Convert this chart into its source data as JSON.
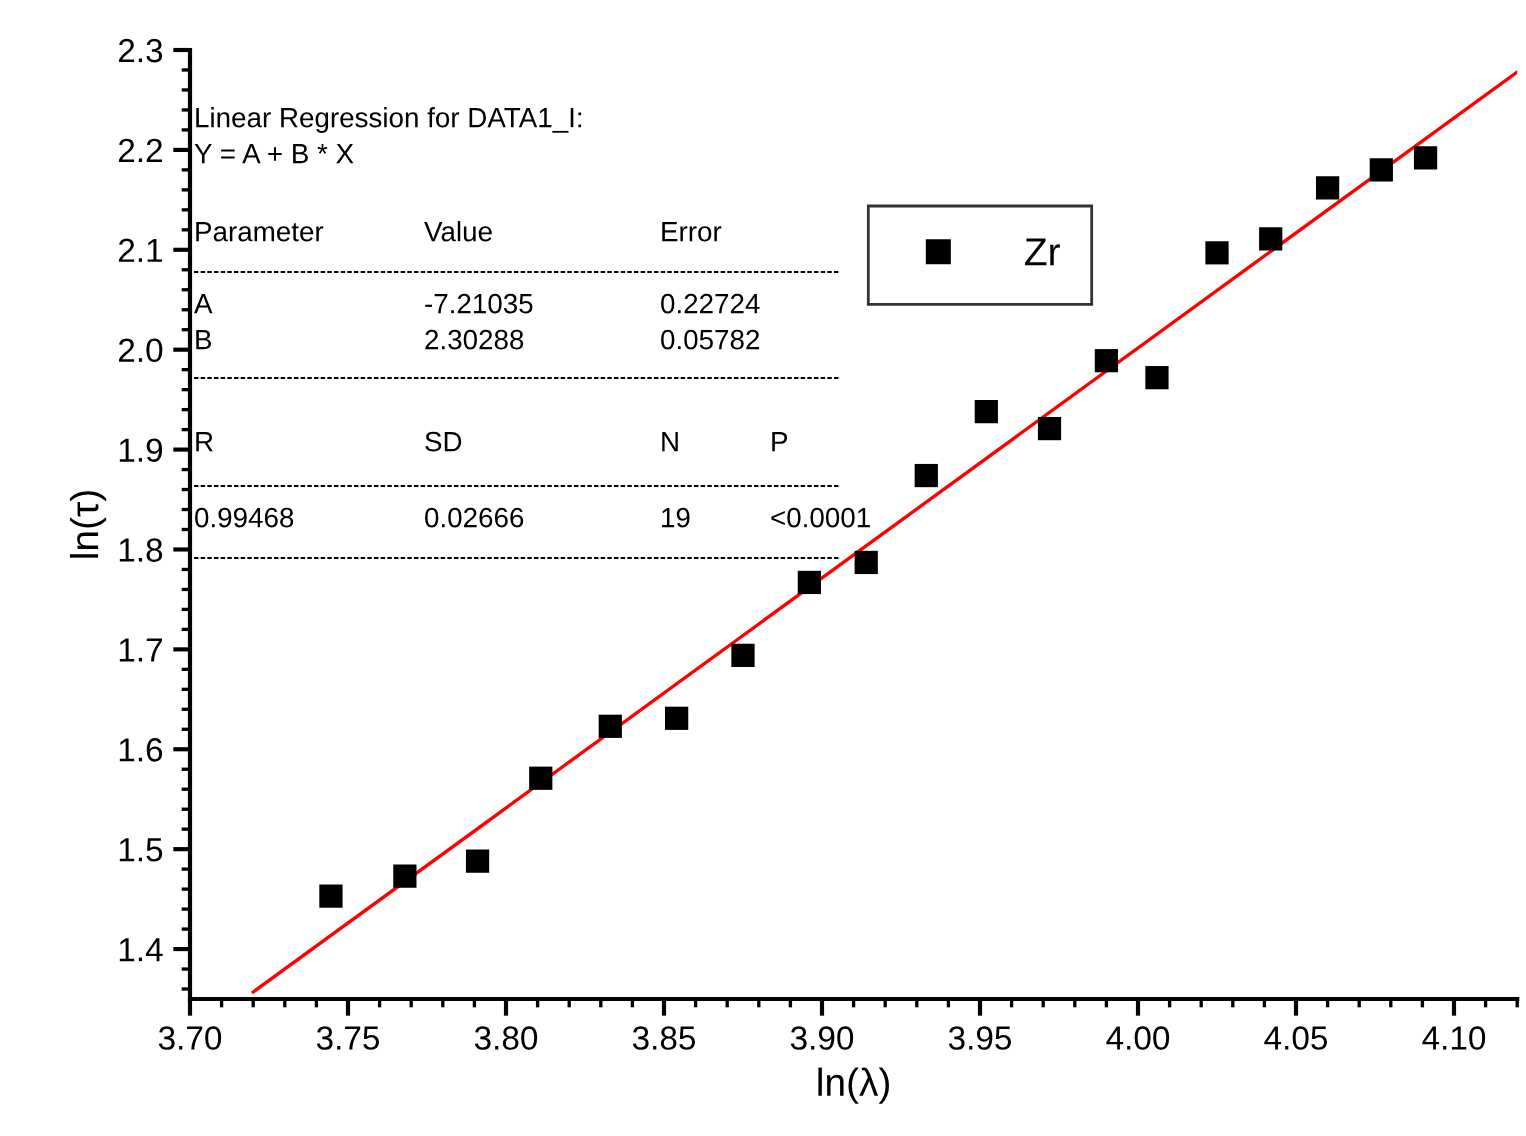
{
  "chart_data": {
    "type": "scatter",
    "xlabel": "ln(λ)",
    "ylabel": "ln(τ)",
    "x": [
      3.7446,
      3.768,
      3.791,
      3.811,
      3.833,
      3.854,
      3.875,
      3.896,
      3.914,
      3.933,
      3.952,
      3.972,
      3.99,
      4.006,
      4.025,
      4.042,
      4.06,
      4.077,
      4.091
    ],
    "series": [
      {
        "name": "Zr",
        "color": "#000000",
        "marker": "square",
        "values": [
          1.453,
          1.473,
          1.488,
          1.571,
          1.623,
          1.631,
          1.694,
          1.767,
          1.787,
          1.874,
          1.938,
          1.921,
          1.989,
          1.972,
          2.097,
          2.111,
          2.162,
          2.18,
          2.192
        ]
      },
      {
        "type": "line",
        "color": "#ff0000",
        "x": [
          3.72,
          4.12
        ],
        "values": [
          1.357,
          2.278
        ]
      }
    ],
    "xlim": [
      3.7,
      4.12
    ],
    "xticks": [
      {
        "value": 3.7,
        "label": "3.70"
      },
      3.75,
      {
        "value": 3.8,
        "label": "3.80"
      },
      3.85,
      {
        "value": 3.9,
        "label": "3.90"
      },
      3.95,
      {
        "value": 4.0,
        "label": "4.00"
      },
      4.05,
      {
        "value": 4.1,
        "label": "4.10"
      }
    ],
    "ylim": [
      1.35,
      2.3
    ],
    "yticks": [
      1.4,
      1.5,
      1.6,
      1.7,
      1.8,
      1.9,
      {
        "value": 2.0,
        "label": "2.0"
      },
      2.1,
      2.2,
      2.3
    ],
    "grid": false,
    "legend": "top",
    "annotations": [
      "Linear Regression for DATA1_I:",
      "Y = A + B * X",
      "Parameter",
      "Value",
      "Error",
      "A",
      "-7.21035",
      "0.22724",
      "B",
      "2.30288",
      "0.05782",
      "R",
      "SD",
      "N",
      "P",
      "0.99468",
      "0.02666",
      "19",
      "<0.0001"
    ]
  }
}
